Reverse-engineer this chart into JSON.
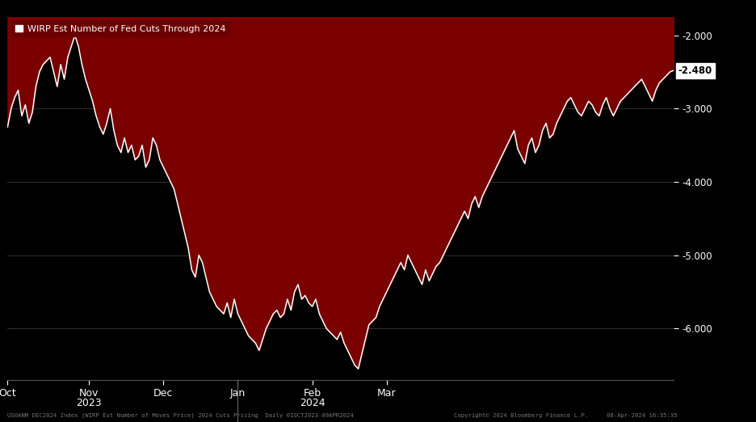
{
  "title": "WIRP Est Number of Fed Cuts Through 2024",
  "legend_label": "WIRP Est Number of Fed Cuts Through 2024",
  "bg_color": "#000000",
  "plot_bg_color": "#000000",
  "fill_color": "#7a0000",
  "line_color": "#ffffff",
  "y_label_color": "#ffffff",
  "grid_color": "#3a3a3a",
  "y_min": -6.7,
  "y_max": -1.75,
  "y_ticks": [
    -2.0,
    -3.0,
    -4.0,
    -5.0,
    -6.0
  ],
  "last_value": -2.48,
  "footer_left": "US0ANM DEC2024 Index (WIRP Est Number of Moves Price) 2024 Cuts Pricing  Daily 01OCT2023-09APR2024",
  "footer_right": "Copyright© 2024 Bloomberg Finance L.P.",
  "footer_date": "08-Apr-2024 16:35:35",
  "x_labels": [
    "Oct",
    "Nov",
    "Dec",
    "Jan",
    "Feb",
    "Mar"
  ],
  "month_positions": [
    0,
    23,
    44,
    65,
    86,
    107
  ],
  "year_2023_idx": 1,
  "year_2024_idx": 4,
  "jan_sep_idx": 3,
  "data": [
    -3.25,
    -3.0,
    -2.85,
    -2.75,
    -3.1,
    -2.95,
    -3.2,
    -3.05,
    -2.7,
    -2.5,
    -2.4,
    -2.35,
    -2.3,
    -2.5,
    -2.7,
    -2.4,
    -2.6,
    -2.3,
    -2.15,
    -2.0,
    -2.15,
    -2.4,
    -2.6,
    -2.75,
    -2.9,
    -3.1,
    -3.25,
    -3.35,
    -3.2,
    -3.0,
    -3.3,
    -3.5,
    -3.6,
    -3.4,
    -3.6,
    -3.5,
    -3.7,
    -3.65,
    -3.5,
    -3.8,
    -3.7,
    -3.4,
    -3.5,
    -3.7,
    -3.8,
    -3.9,
    -4.0,
    -4.1,
    -4.3,
    -4.5,
    -4.7,
    -4.9,
    -5.2,
    -5.3,
    -5.0,
    -5.1,
    -5.3,
    -5.5,
    -5.6,
    -5.7,
    -5.75,
    -5.8,
    -5.65,
    -5.85,
    -5.6,
    -5.8,
    -5.9,
    -6.0,
    -6.1,
    -6.15,
    -6.2,
    -6.3,
    -6.15,
    -6.0,
    -5.9,
    -5.8,
    -5.75,
    -5.85,
    -5.8,
    -5.6,
    -5.75,
    -5.5,
    -5.4,
    -5.6,
    -5.55,
    -5.65,
    -5.7,
    -5.6,
    -5.8,
    -5.9,
    -6.0,
    -6.05,
    -6.1,
    -6.15,
    -6.05,
    -6.2,
    -6.3,
    -6.4,
    -6.5,
    -6.55,
    -6.35,
    -6.15,
    -5.95,
    -5.9,
    -5.85,
    -5.7,
    -5.6,
    -5.5,
    -5.4,
    -5.3,
    -5.2,
    -5.1,
    -5.2,
    -5.0,
    -5.1,
    -5.2,
    -5.3,
    -5.4,
    -5.2,
    -5.35,
    -5.25,
    -5.15,
    -5.1,
    -5.0,
    -4.9,
    -4.8,
    -4.7,
    -4.6,
    -4.5,
    -4.4,
    -4.5,
    -4.3,
    -4.2,
    -4.35,
    -4.2,
    -4.1,
    -4.0,
    -3.9,
    -3.8,
    -3.7,
    -3.6,
    -3.5,
    -3.4,
    -3.3,
    -3.55,
    -3.65,
    -3.75,
    -3.5,
    -3.4,
    -3.6,
    -3.5,
    -3.3,
    -3.2,
    -3.4,
    -3.35,
    -3.2,
    -3.1,
    -3.0,
    -2.9,
    -2.85,
    -2.95,
    -3.05,
    -3.1,
    -3.0,
    -2.9,
    -2.95,
    -3.05,
    -3.1,
    -2.95,
    -2.85,
    -3.0,
    -3.1,
    -3.0,
    -2.9,
    -2.85,
    -2.8,
    -2.75,
    -2.7,
    -2.65,
    -2.6,
    -2.7,
    -2.8,
    -2.9,
    -2.75,
    -2.65,
    -2.6,
    -2.55,
    -2.5,
    -2.48
  ]
}
